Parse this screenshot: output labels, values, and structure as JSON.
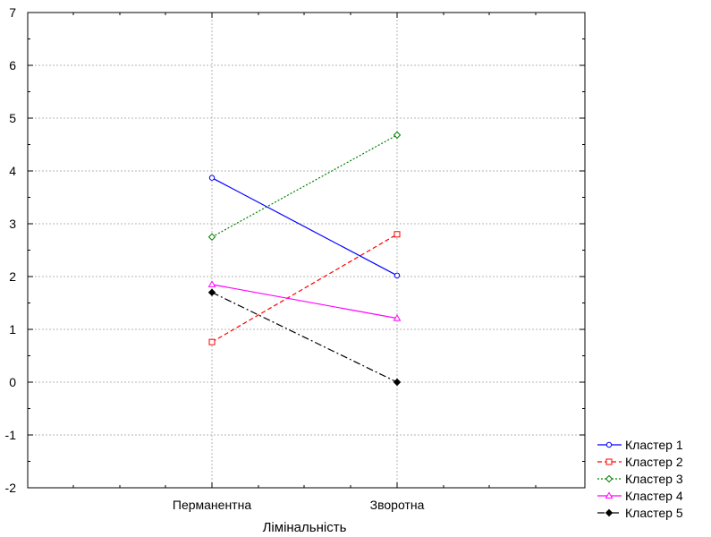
{
  "chart_data": {
    "type": "line",
    "title": "",
    "xlabel": "Лімінальність",
    "ylabel": "",
    "categories": [
      "Перманентна",
      "Зворотна"
    ],
    "ylim": [
      -2,
      7
    ],
    "yticks": [
      "-2",
      "-1",
      "0",
      "1",
      "2",
      "3",
      "4",
      "5",
      "6",
      "7"
    ],
    "grid": true,
    "legend_position": "bottom-right",
    "series": [
      {
        "name": "Кластер  1",
        "values": [
          3.87,
          2.02
        ],
        "color": "#0000ff",
        "dash": "solid",
        "marker": "circle"
      },
      {
        "name": "Кластер  2",
        "values": [
          0.76,
          2.8
        ],
        "color": "#ff0000",
        "dash": "dashed",
        "marker": "square"
      },
      {
        "name": "Кластер  3",
        "values": [
          2.75,
          4.68
        ],
        "color": "#008000",
        "dash": "dotted",
        "marker": "diamond"
      },
      {
        "name": "Кластер  4",
        "values": [
          1.85,
          1.21
        ],
        "color": "#ff00ff",
        "dash": "solid",
        "marker": "triangle"
      },
      {
        "name": "Кластер  5",
        "values": [
          1.7,
          0.0
        ],
        "color": "#000000",
        "dash": "dashdot",
        "marker": "filled-diamond"
      }
    ]
  }
}
